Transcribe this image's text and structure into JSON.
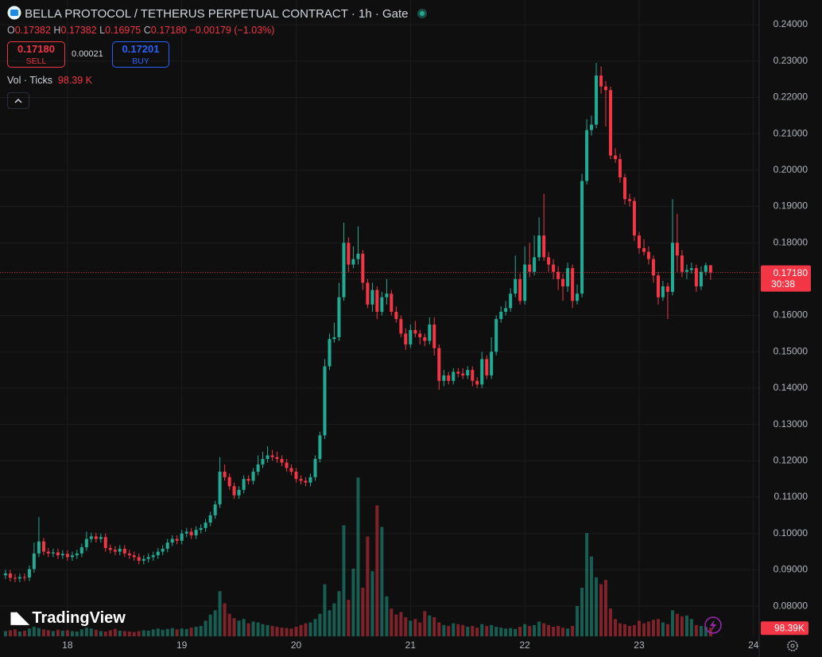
{
  "chart_data": {
    "type": "candlestick",
    "title": "BELLA PROTOCOL / TETHERUS PERPETUAL CONTRACT · 1h · Gate",
    "ohlc_labels": [
      "O",
      "H",
      "L",
      "C"
    ],
    "ohlc_values": [
      "0.17382",
      "0.17382",
      "0.16975",
      "0.17180"
    ],
    "change": "−0.00179 (−1.03%)",
    "sell": {
      "price": "0.17180",
      "label": "SELL"
    },
    "spread": "0.00021",
    "buy": {
      "price": "0.17201",
      "label": "BUY"
    },
    "volume_title": "Vol · Ticks",
    "volume_value": "98.39 K",
    "volume_axis_label": "98.39K",
    "last_price": {
      "value": 0.1718,
      "label": "0.17180"
    },
    "countdown": "30:38",
    "brand": "TradingView",
    "up_color": "#22ab94",
    "down_color": "#f23645",
    "grid": true,
    "xlim": [
      17.41,
      24.05
    ],
    "xticks": [
      18,
      19,
      20,
      21,
      22,
      23,
      24
    ],
    "ylim": [
      0.0717,
      0.2468
    ],
    "yticks": [
      {
        "value": 0.08,
        "label": "0.08000"
      },
      {
        "value": 0.09,
        "label": "0.09000"
      },
      {
        "value": 0.1,
        "label": "0.10000"
      },
      {
        "value": 0.11,
        "label": "0.11000"
      },
      {
        "value": 0.12,
        "label": "0.12000"
      },
      {
        "value": 0.13,
        "label": "0.13000"
      },
      {
        "value": 0.14,
        "label": "0.14000"
      },
      {
        "value": 0.15,
        "label": "0.15000"
      },
      {
        "value": 0.16,
        "label": "0.16000"
      },
      {
        "value": 0.17,
        "label": "0.17000"
      },
      {
        "value": 0.18,
        "label": "0.18000"
      },
      {
        "value": 0.19,
        "label": "0.19000"
      },
      {
        "value": 0.2,
        "label": "0.20000"
      },
      {
        "value": 0.21,
        "label": "0.21000"
      },
      {
        "value": 0.22,
        "label": "0.22000"
      },
      {
        "value": 0.23,
        "label": "0.23000"
      },
      {
        "value": 0.24,
        "label": "0.24000"
      }
    ],
    "volume_lim": [
      0,
      2200
    ],
    "x": [
      17.458,
      17.5,
      17.542,
      17.583,
      17.625,
      17.667,
      17.708,
      17.75,
      17.792,
      17.833,
      17.875,
      17.917,
      17.958,
      18,
      18.042,
      18.083,
      18.125,
      18.167,
      18.208,
      18.25,
      18.292,
      18.333,
      18.375,
      18.417,
      18.458,
      18.5,
      18.542,
      18.583,
      18.625,
      18.667,
      18.708,
      18.75,
      18.792,
      18.833,
      18.875,
      18.917,
      18.958,
      19,
      19.042,
      19.083,
      19.125,
      19.167,
      19.208,
      19.25,
      19.292,
      19.333,
      19.375,
      19.417,
      19.458,
      19.5,
      19.542,
      19.583,
      19.625,
      19.667,
      19.708,
      19.75,
      19.792,
      19.833,
      19.875,
      19.917,
      19.958,
      20,
      20.042,
      20.083,
      20.125,
      20.167,
      20.208,
      20.25,
      20.292,
      20.333,
      20.375,
      20.417,
      20.458,
      20.5,
      20.542,
      20.583,
      20.625,
      20.667,
      20.708,
      20.75,
      20.792,
      20.833,
      20.875,
      20.917,
      20.958,
      21,
      21.042,
      21.083,
      21.125,
      21.167,
      21.208,
      21.25,
      21.292,
      21.333,
      21.375,
      21.417,
      21.458,
      21.5,
      21.542,
      21.583,
      21.625,
      21.667,
      21.708,
      21.75,
      21.792,
      21.833,
      21.875,
      21.917,
      21.958,
      22,
      22.042,
      22.083,
      22.125,
      22.167,
      22.208,
      22.25,
      22.292,
      22.333,
      22.375,
      22.417,
      22.458,
      22.5,
      22.542,
      22.583,
      22.625,
      22.667,
      22.708,
      22.75,
      22.792,
      22.833,
      22.875,
      22.917,
      22.958,
      23,
      23.042,
      23.083,
      23.125,
      23.167,
      23.208,
      23.25,
      23.292,
      23.333,
      23.375,
      23.417,
      23.458,
      23.5,
      23.542,
      23.583,
      23.625
    ],
    "open": [
      0.0885,
      0.089,
      0.0878,
      0.0876,
      0.088,
      0.0879,
      0.0902,
      0.0945,
      0.0978,
      0.095,
      0.0945,
      0.0948,
      0.094,
      0.0944,
      0.0935,
      0.094,
      0.0945,
      0.0962,
      0.0985,
      0.0992,
      0.0985,
      0.099,
      0.096,
      0.0955,
      0.095,
      0.0958,
      0.0945,
      0.094,
      0.0935,
      0.0925,
      0.093,
      0.0935,
      0.094,
      0.095,
      0.0958,
      0.0975,
      0.0985,
      0.098,
      0.1,
      0.1005,
      0.0995,
      0.101,
      0.1015,
      0.103,
      0.105,
      0.108,
      0.117,
      0.1155,
      0.113,
      0.1105,
      0.112,
      0.115,
      0.1145,
      0.117,
      0.119,
      0.1205,
      0.1215,
      0.121,
      0.1205,
      0.1195,
      0.118,
      0.117,
      0.115,
      0.1145,
      0.114,
      0.1155,
      0.1205,
      0.127,
      0.146,
      0.1535,
      0.154,
      0.165,
      0.18,
      0.174,
      0.1755,
      0.177,
      0.169,
      0.163,
      0.167,
      0.161,
      0.165,
      0.166,
      0.161,
      0.159,
      0.155,
      0.152,
      0.156,
      0.155,
      0.154,
      0.153,
      0.1575,
      0.151,
      0.142,
      0.1435,
      0.142,
      0.1445,
      0.144,
      0.1435,
      0.145,
      0.142,
      0.141,
      0.148,
      0.1435,
      0.15,
      0.159,
      0.161,
      0.162,
      0.166,
      0.17,
      0.164,
      0.174,
      0.172,
      0.176,
      0.182,
      0.176,
      0.174,
      0.172,
      0.17,
      0.168,
      0.173,
      0.164,
      0.166,
      0.197,
      0.211,
      0.2125,
      0.226,
      0.223,
      0.222,
      0.204,
      0.203,
      0.198,
      0.192,
      0.1915,
      0.182,
      0.1785,
      0.1775,
      0.1755,
      0.171,
      0.165,
      0.168,
      0.1665,
      0.18,
      0.1765,
      0.172,
      0.1725,
      0.173,
      0.168,
      0.172,
      0.17382
    ],
    "high": [
      0.09,
      0.09,
      0.0888,
      0.089,
      0.089,
      0.0912,
      0.0975,
      0.1045,
      0.0988,
      0.096,
      0.0958,
      0.0958,
      0.0954,
      0.0954,
      0.095,
      0.0955,
      0.0972,
      0.1005,
      0.1002,
      0.1002,
      0.1,
      0.1,
      0.097,
      0.0965,
      0.0968,
      0.0968,
      0.0955,
      0.095,
      0.0945,
      0.094,
      0.0945,
      0.095,
      0.096,
      0.0968,
      0.0985,
      0.0995,
      0.0995,
      0.101,
      0.1015,
      0.1015,
      0.102,
      0.1025,
      0.104,
      0.106,
      0.109,
      0.121,
      0.119,
      0.1165,
      0.114,
      0.113,
      0.116,
      0.116,
      0.118,
      0.1215,
      0.1225,
      0.124,
      0.123,
      0.1225,
      0.1215,
      0.1205,
      0.119,
      0.118,
      0.116,
      0.1155,
      0.1165,
      0.1215,
      0.128,
      0.148,
      0.155,
      0.158,
      0.169,
      0.1855,
      0.1815,
      0.179,
      0.1845,
      0.178,
      0.17,
      0.169,
      0.168,
      0.1665,
      0.17,
      0.167,
      0.1625,
      0.16,
      0.1565,
      0.1575,
      0.1585,
      0.156,
      0.155,
      0.1595,
      0.1595,
      0.152,
      0.145,
      0.1445,
      0.1455,
      0.1455,
      0.1455,
      0.146,
      0.146,
      0.143,
      0.15,
      0.149,
      0.154,
      0.16,
      0.1625,
      0.164,
      0.1675,
      0.1765,
      0.1715,
      0.179,
      0.18,
      0.182,
      0.187,
      0.1935,
      0.1775,
      0.1755,
      0.1735,
      0.1715,
      0.1745,
      0.174,
      0.1685,
      0.199,
      0.214,
      0.215,
      0.2295,
      0.2285,
      0.2245,
      0.223,
      0.206,
      0.2045,
      0.199,
      0.1935,
      0.1925,
      0.183,
      0.181,
      0.179,
      0.1765,
      0.172,
      0.1695,
      0.169,
      0.192,
      0.188,
      0.178,
      0.174,
      0.1745,
      0.174,
      0.1735,
      0.1745,
      0.17382
    ],
    "low": [
      0.0875,
      0.0868,
      0.0866,
      0.0866,
      0.0869,
      0.0869,
      0.0892,
      0.0935,
      0.094,
      0.0935,
      0.0935,
      0.093,
      0.093,
      0.0925,
      0.0925,
      0.093,
      0.0935,
      0.0952,
      0.0975,
      0.0975,
      0.0975,
      0.095,
      0.0945,
      0.094,
      0.094,
      0.0935,
      0.093,
      0.0925,
      0.0915,
      0.0915,
      0.092,
      0.0925,
      0.093,
      0.094,
      0.0948,
      0.0965,
      0.097,
      0.097,
      0.099,
      0.0985,
      0.0985,
      0.1,
      0.1005,
      0.102,
      0.104,
      0.107,
      0.1145,
      0.112,
      0.1095,
      0.1095,
      0.111,
      0.1135,
      0.1135,
      0.116,
      0.118,
      0.1195,
      0.12,
      0.1195,
      0.1185,
      0.117,
      0.116,
      0.114,
      0.1135,
      0.113,
      0.113,
      0.1145,
      0.1195,
      0.126,
      0.145,
      0.1525,
      0.153,
      0.164,
      0.172,
      0.173,
      0.174,
      0.167,
      0.162,
      0.161,
      0.159,
      0.16,
      0.163,
      0.16,
      0.158,
      0.154,
      0.1505,
      0.151,
      0.154,
      0.152,
      0.1515,
      0.152,
      0.149,
      0.1395,
      0.1405,
      0.141,
      0.141,
      0.143,
      0.1425,
      0.1425,
      0.1405,
      0.14,
      0.14,
      0.1425,
      0.1425,
      0.149,
      0.158,
      0.16,
      0.161,
      0.165,
      0.163,
      0.163,
      0.1705,
      0.171,
      0.175,
      0.175,
      0.172,
      0.17,
      0.167,
      0.164,
      0.1665,
      0.162,
      0.163,
      0.165,
      0.196,
      0.2095,
      0.2115,
      0.221,
      0.212,
      0.203,
      0.202,
      0.1965,
      0.1905,
      0.19,
      0.1805,
      0.177,
      0.1765,
      0.174,
      0.169,
      0.163,
      0.164,
      0.159,
      0.1655,
      0.172,
      0.1705,
      0.17,
      0.1715,
      0.1665,
      0.167,
      0.171,
      0.16975
    ],
    "close": [
      0.089,
      0.0878,
      0.0876,
      0.088,
      0.0879,
      0.0902,
      0.0945,
      0.0978,
      0.095,
      0.0945,
      0.0948,
      0.094,
      0.0944,
      0.0935,
      0.094,
      0.0945,
      0.0962,
      0.0985,
      0.0992,
      0.0985,
      0.099,
      0.096,
      0.0955,
      0.095,
      0.0958,
      0.0945,
      0.094,
      0.0935,
      0.0925,
      0.093,
      0.0935,
      0.094,
      0.095,
      0.0958,
      0.0975,
      0.0985,
      0.098,
      0.1,
      0.1005,
      0.0995,
      0.101,
      0.1015,
      0.103,
      0.105,
      0.108,
      0.117,
      0.1155,
      0.113,
      0.1105,
      0.112,
      0.115,
      0.1145,
      0.117,
      0.119,
      0.1205,
      0.1215,
      0.121,
      0.1205,
      0.1195,
      0.118,
      0.117,
      0.115,
      0.1145,
      0.114,
      0.1155,
      0.1205,
      0.127,
      0.146,
      0.1535,
      0.154,
      0.165,
      0.18,
      0.174,
      0.1755,
      0.177,
      0.169,
      0.163,
      0.167,
      0.161,
      0.165,
      0.166,
      0.161,
      0.159,
      0.155,
      0.152,
      0.156,
      0.155,
      0.154,
      0.153,
      0.1575,
      0.151,
      0.142,
      0.1435,
      0.142,
      0.1445,
      0.144,
      0.1435,
      0.145,
      0.142,
      0.141,
      0.148,
      0.1435,
      0.15,
      0.159,
      0.161,
      0.162,
      0.166,
      0.17,
      0.164,
      0.174,
      0.172,
      0.176,
      0.182,
      0.176,
      0.174,
      0.172,
      0.17,
      0.168,
      0.173,
      0.164,
      0.166,
      0.197,
      0.211,
      0.2125,
      0.226,
      0.223,
      0.222,
      0.204,
      0.203,
      0.198,
      0.192,
      0.1915,
      0.182,
      0.1785,
      0.1775,
      0.1755,
      0.171,
      0.165,
      0.168,
      0.1665,
      0.18,
      0.1765,
      0.172,
      0.1725,
      0.173,
      0.168,
      0.172,
      0.1738,
      0.1718
    ],
    "volume": [
      60,
      70,
      80,
      55,
      65,
      90,
      110,
      95,
      80,
      70,
      60,
      75,
      65,
      70,
      60,
      55,
      80,
      100,
      90,
      75,
      60,
      55,
      70,
      85,
      65,
      60,
      55,
      50,
      60,
      70,
      65,
      80,
      90,
      75,
      85,
      95,
      80,
      90,
      85,
      100,
      110,
      120,
      180,
      250,
      300,
      520,
      380,
      260,
      210,
      180,
      200,
      150,
      170,
      160,
      140,
      130,
      120,
      110,
      100,
      95,
      90,
      110,
      130,
      150,
      160,
      200,
      260,
      600,
      300,
      380,
      520,
      1280,
      420,
      780,
      1830,
      560,
      1150,
      750,
      1510,
      1260,
      460,
      320,
      250,
      280,
      220,
      180,
      200,
      160,
      290,
      240,
      220,
      160,
      130,
      120,
      150,
      140,
      130,
      110,
      120,
      100,
      140,
      120,
      130,
      110,
      100,
      90,
      95,
      85,
      110,
      140,
      120,
      130,
      170,
      150,
      130,
      110,
      120,
      100,
      90,
      120,
      350,
      560,
      1190,
      920,
      680,
      600,
      650,
      320,
      200,
      150,
      140,
      120,
      130,
      180,
      150,
      170,
      190,
      200,
      160,
      140,
      300,
      260,
      230,
      240,
      200,
      130,
      120,
      110,
      98.39
    ]
  }
}
